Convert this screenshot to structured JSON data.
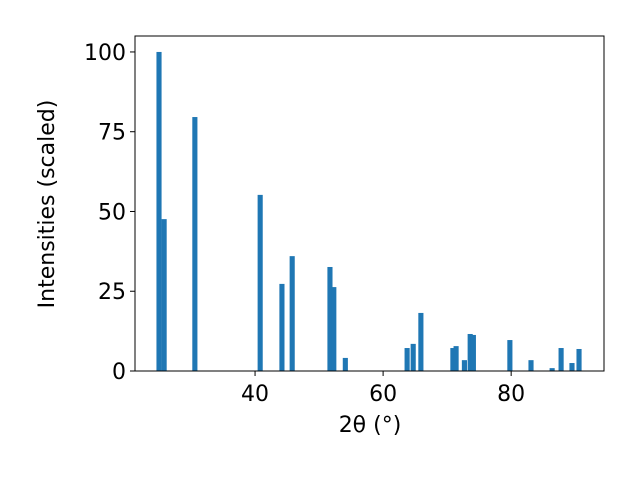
{
  "chart_data": {
    "type": "bar",
    "x": [
      25.0,
      25.8,
      30.6,
      40.8,
      44.2,
      45.8,
      51.7,
      52.3,
      54.1,
      63.75,
      64.7,
      65.9,
      70.9,
      71.4,
      72.7,
      73.6,
      74.1,
      79.8,
      83.1,
      86.4,
      87.8,
      89.5,
      90.6
    ],
    "values": [
      100,
      47.6,
      79.6,
      55.2,
      27.3,
      36,
      32.6,
      26.3,
      4.1,
      7.2,
      8.5,
      18.2,
      7.2,
      7.8,
      3.4,
      11.6,
      11.3,
      9.7,
      3.4,
      0.9,
      7.2,
      2.5,
      6.9
    ],
    "color": "#1f77b4",
    "xlabel": "2θ (°)",
    "ylabel": "Intensities (scaled)",
    "xlim": [
      21.25,
      94.5
    ],
    "ylim": [
      0,
      105
    ],
    "xticks": [
      40,
      60,
      80
    ],
    "yticks": [
      0,
      25,
      50,
      75,
      100
    ]
  }
}
